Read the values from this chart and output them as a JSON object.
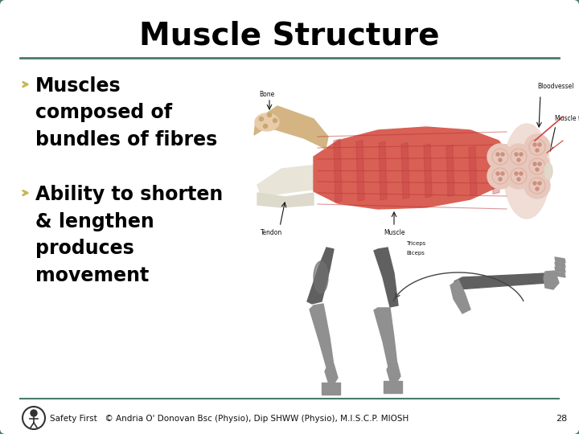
{
  "title": "Muscle Structure",
  "title_fontsize": 28,
  "title_fontweight": "bold",
  "title_color": "#000000",
  "bullet1_text": "Muscles\ncomposed of\nbundles of fibres",
  "bullet2_text": "Ability to shorten\n& lengthen\nproduces\nmovement",
  "bullet_fontsize": 17,
  "bullet_fontweight": "bold",
  "bullet_color": "#000000",
  "bullet_arrow_color": "#c8b85a",
  "footer_text": "Safety First   © Andria O' Donovan Bsc (Physio), Dip SHWW (Physio), M.I.S.C.P. MIOSH",
  "footer_fontsize": 7.5,
  "page_number": "28",
  "background_color": "#ffffff",
  "border_color": "#4a7a6a",
  "separator_color": "#4a7a6a",
  "footer_line_color": "#4a7a6a",
  "muscle_red": "#d96055",
  "muscle_dark": "#c04040",
  "muscle_light": "#e8a090",
  "bone_color": "#d4b483",
  "bone_light": "#e8ccaa",
  "tendon_color": "#e8e4d8",
  "arm_color": "#888888",
  "arm_light": "#aaaaaa",
  "diag_label_fs": 5.5,
  "diag_label_color": "#111111"
}
